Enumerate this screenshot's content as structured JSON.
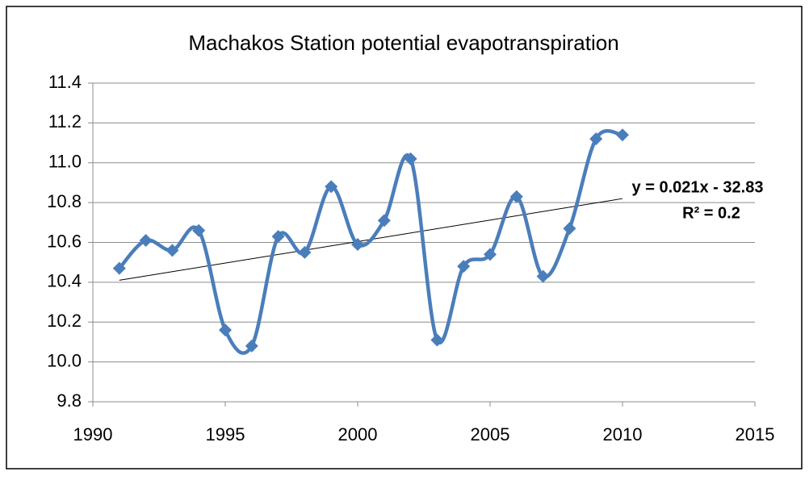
{
  "chart_data": {
    "type": "line",
    "title": "Machakos Station potential evapotranspiration",
    "x": [
      1991,
      1992,
      1993,
      1994,
      1995,
      1996,
      1997,
      1998,
      1999,
      2000,
      2001,
      2002,
      2003,
      2004,
      2005,
      2006,
      2007,
      2008,
      2009,
      2010
    ],
    "values": [
      10.47,
      10.61,
      10.56,
      10.66,
      10.16,
      10.08,
      10.63,
      10.55,
      10.88,
      10.59,
      10.71,
      11.02,
      10.11,
      10.48,
      10.54,
      10.83,
      10.43,
      10.67,
      11.12,
      11.14
    ],
    "color": "#4a7ebb",
    "smooth": true,
    "xlim": [
      1990,
      2015
    ],
    "xticks": [
      1990,
      1995,
      2000,
      2005,
      2010,
      2015
    ],
    "ylim": [
      9.8,
      11.4
    ],
    "yticks": [
      9.8,
      {
        "value": 10,
        "label": "10.0"
      },
      10.2,
      10.4,
      10.6,
      10.8,
      {
        "value": 11,
        "label": "11.0"
      },
      11.2,
      11.4
    ],
    "grid": true,
    "trendline": {
      "x": [
        1991,
        2010
      ],
      "values": [
        10.41,
        10.82
      ],
      "color": "#000000",
      "equation": "y = 0.021x - 32.83",
      "r2": "R² = 0.2"
    }
  }
}
